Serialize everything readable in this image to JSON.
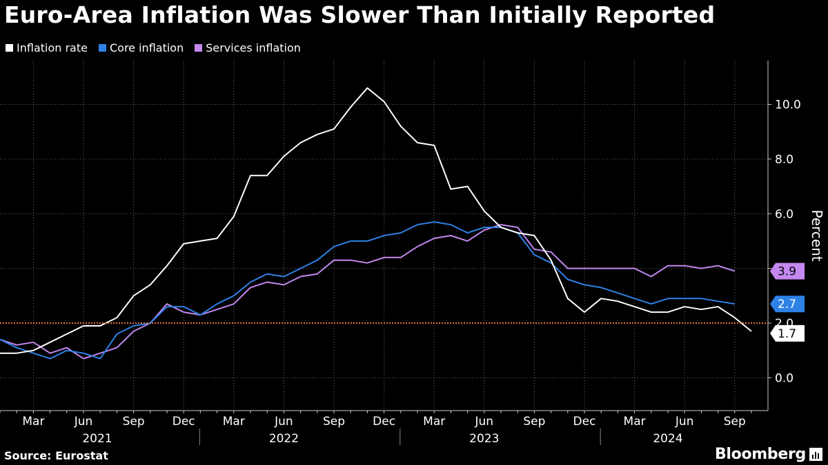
{
  "title": "Euro-Area Inflation Was Slower Than Initially Reported",
  "legend": [
    {
      "label": "Inflation rate",
      "color": "#ffffff"
    },
    {
      "label": "Core inflation",
      "color": "#2e82e6"
    },
    {
      "label": "Services inflation",
      "color": "#c488f0"
    }
  ],
  "source": "Source: Eurostat",
  "brand": "Bloomberg",
  "chart_data": {
    "type": "line",
    "ylabel": "Percent",
    "ylim": [
      -1.2,
      11.6
    ],
    "yticks": [
      0.0,
      2.0,
      4.0,
      6.0,
      8.0,
      10.0
    ],
    "ytick_labels": [
      "0.0",
      "2.0",
      "4.0",
      "6.0",
      "8.0",
      "10.0"
    ],
    "x_start": "Jan 2021",
    "x_end": "Sep 2024",
    "month_ticks": [
      {
        "label": "Mar",
        "index": 2
      },
      {
        "label": "Jun",
        "index": 5
      },
      {
        "label": "Sep",
        "index": 8
      },
      {
        "label": "Dec",
        "index": 11
      },
      {
        "label": "Mar",
        "index": 14
      },
      {
        "label": "Jun",
        "index": 17
      },
      {
        "label": "Sep",
        "index": 20
      },
      {
        "label": "Dec",
        "index": 23
      },
      {
        "label": "Mar",
        "index": 26
      },
      {
        "label": "Jun",
        "index": 29
      },
      {
        "label": "Sep",
        "index": 32
      },
      {
        "label": "Dec",
        "index": 35
      },
      {
        "label": "Mar",
        "index": 38
      },
      {
        "label": "Jun",
        "index": 41
      },
      {
        "label": "Sep",
        "index": 44
      }
    ],
    "years": [
      {
        "label": "2021",
        "center": 5
      },
      {
        "label": "2022",
        "center": 17
      },
      {
        "label": "2023",
        "center": 29
      },
      {
        "label": "2024",
        "center": 40
      }
    ],
    "reference_line": {
      "value": 2.0,
      "color": "#e8734a"
    },
    "series": [
      {
        "name": "Inflation rate",
        "color": "#ffffff",
        "end_label": "1.7",
        "values": [
          0.9,
          0.9,
          1.0,
          1.3,
          1.6,
          1.9,
          1.9,
          2.2,
          3.0,
          3.4,
          4.1,
          4.9,
          5.0,
          5.1,
          5.9,
          7.4,
          7.4,
          8.1,
          8.6,
          8.9,
          9.1,
          9.9,
          10.6,
          10.1,
          9.2,
          8.6,
          8.5,
          6.9,
          7.0,
          6.1,
          5.5,
          5.3,
          5.2,
          4.3,
          2.9,
          2.4,
          2.9,
          2.8,
          2.6,
          2.4,
          2.4,
          2.6,
          2.5,
          2.6,
          2.2,
          1.7
        ]
      },
      {
        "name": "Core inflation",
        "color": "#2e82e6",
        "end_label": "2.7",
        "values": [
          1.4,
          1.1,
          0.9,
          0.7,
          1.0,
          0.9,
          0.7,
          1.6,
          1.9,
          2.0,
          2.6,
          2.6,
          2.3,
          2.7,
          3.0,
          3.5,
          3.8,
          3.7,
          4.0,
          4.3,
          4.8,
          5.0,
          5.0,
          5.2,
          5.3,
          5.6,
          5.7,
          5.6,
          5.3,
          5.5,
          5.5,
          5.3,
          4.5,
          4.2,
          3.6,
          3.4,
          3.3,
          3.1,
          2.9,
          2.7,
          2.9,
          2.9,
          2.9,
          2.8,
          2.7
        ]
      },
      {
        "name": "Services inflation",
        "color": "#c488f0",
        "end_label": "3.9",
        "values": [
          1.4,
          1.2,
          1.3,
          0.9,
          1.1,
          0.7,
          0.9,
          1.1,
          1.7,
          2.0,
          2.7,
          2.4,
          2.3,
          2.5,
          2.7,
          3.3,
          3.5,
          3.4,
          3.7,
          3.8,
          4.3,
          4.3,
          4.2,
          4.4,
          4.4,
          4.8,
          5.1,
          5.2,
          5.0,
          5.4,
          5.6,
          5.5,
          4.7,
          4.6,
          4.0,
          4.0,
          4.0,
          4.0,
          4.0,
          3.7,
          4.1,
          4.1,
          4.0,
          4.1,
          3.9
        ]
      }
    ]
  }
}
